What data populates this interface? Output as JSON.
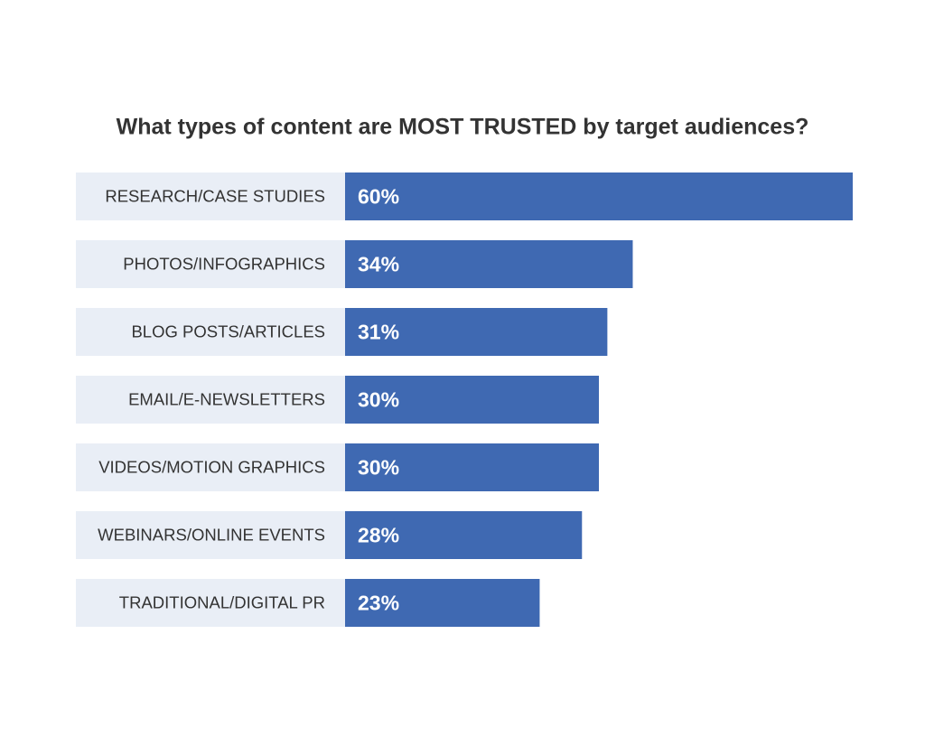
{
  "chart_data": {
    "type": "bar",
    "orientation": "horizontal",
    "title": "What types of content are MOST TRUSTED by target audiences?",
    "categories": [
      "RESEARCH/CASE STUDIES",
      "PHOTOS/INFOGRAPHICS",
      "BLOG POSTS/ARTICLES",
      "EMAIL/E-NEWSLETTERS",
      "VIDEOS/MOTION GRAPHICS",
      "WEBINARS/ONLINE EVENTS",
      "TRADITIONAL/DIGITAL PR"
    ],
    "values": [
      60,
      34,
      31,
      30,
      30,
      28,
      23
    ],
    "value_labels": [
      "60%",
      "34%",
      "31%",
      "30%",
      "30%",
      "28%",
      "23%"
    ],
    "color": "#3f69b2"
  }
}
